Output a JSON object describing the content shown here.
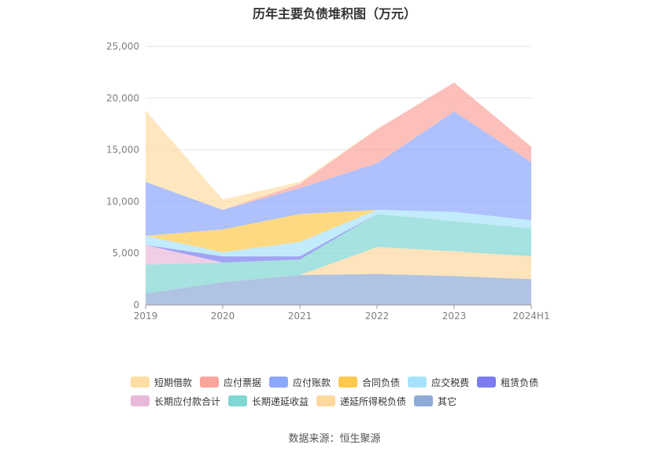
{
  "title": "历年主要负债堆积图（万元）",
  "source": "数据来源：恒生聚源",
  "chart_data": {
    "type": "area",
    "stacked": true,
    "categories": [
      "2019",
      "2020",
      "2021",
      "2022",
      "2023",
      "2024H1"
    ],
    "ylim": [
      0,
      25000
    ],
    "yticks": [
      0,
      5000,
      10000,
      15000,
      20000,
      25000
    ],
    "ytick_labels": [
      "0",
      "5,000",
      "10,000",
      "15,000",
      "20,000",
      "25,000"
    ],
    "grid": true,
    "legend_position": "bottom",
    "series": [
      {
        "name": "其它",
        "color": "#8eaad6",
        "values": [
          1100,
          2200,
          2900,
          3000,
          2800,
          2500
        ]
      },
      {
        "name": "递延所得税负债",
        "color": "#fdd9a0",
        "values": [
          0,
          0,
          0,
          2600,
          2400,
          2200
        ]
      },
      {
        "name": "长期递延收益",
        "color": "#80d6d2",
        "values": [
          2800,
          1900,
          1500,
          3200,
          2900,
          2700
        ]
      },
      {
        "name": "长期应付款合计",
        "color": "#e9b9da",
        "values": [
          1900,
          0,
          0,
          0,
          0,
          0
        ]
      },
      {
        "name": "租赁负债",
        "color": "#7a7cf0",
        "values": [
          0,
          600,
          300,
          0,
          0,
          0
        ]
      },
      {
        "name": "应交税费",
        "color": "#a8e2fa",
        "values": [
          900,
          400,
          1400,
          400,
          900,
          800
        ]
      },
      {
        "name": "合同负债",
        "color": "#fcc94d",
        "values": [
          0,
          2200,
          2700,
          0,
          0,
          0
        ]
      },
      {
        "name": "应付账款",
        "color": "#8ca7fb",
        "values": [
          5200,
          1900,
          2500,
          4500,
          9700,
          5600
        ]
      },
      {
        "name": "应付票据",
        "color": "#fba49c",
        "values": [
          0,
          0,
          400,
          3300,
          2800,
          1500
        ]
      },
      {
        "name": "短期借款",
        "color": "#fddda4",
        "values": [
          6900,
          1000,
          200,
          0,
          0,
          0
        ]
      }
    ],
    "legend_rows": [
      [
        "短期借款",
        "应付票据",
        "应付账款",
        "合同负债",
        "应交税费",
        "租赁负债"
      ],
      [
        "长期应付款合计",
        "长期递延收益",
        "递延所得税负债",
        "其它"
      ]
    ]
  }
}
